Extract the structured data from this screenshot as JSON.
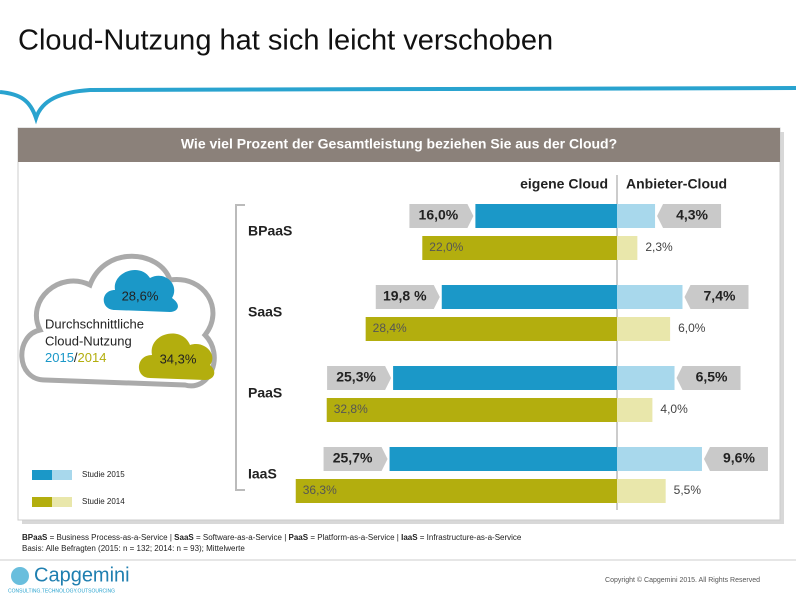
{
  "header": {
    "title": "Cloud-Nutzung hat sich leicht verschoben"
  },
  "chart_data": {
    "type": "diverging_bar",
    "title": "Wie viel Prozent der Gesamtleistung beziehen Sie aus der Cloud?",
    "categories": [
      "BPaaS",
      "SaaS",
      "PaaS",
      "IaaS"
    ],
    "sides": [
      "eigene Cloud",
      "Anbieter-Cloud"
    ],
    "series": [
      {
        "name": "Studie 2015",
        "color_left": "#1b98c8",
        "color_right": "#a8d8ec",
        "eigene": {
          "values": [
            16.0,
            19.8,
            25.3,
            25.7
          ],
          "value_labels": [
            "16,0%",
            "19,8 %",
            "25,3%",
            "25,7%"
          ]
        },
        "anbieter": {
          "values": [
            4.3,
            7.4,
            6.5,
            9.6
          ],
          "value_labels": [
            "4,3%",
            "7,4%",
            "6,5%",
            "9,6%"
          ]
        }
      },
      {
        "name": "Studie 2014",
        "color_left": "#b3ae0e",
        "color_right": "#e9e7ab",
        "eigene": {
          "values": [
            22.0,
            28.4,
            32.8,
            36.3
          ],
          "value_labels": [
            "22,0%",
            "28,4%",
            "32,8%",
            "36,3%"
          ]
        },
        "anbieter": {
          "values": [
            2.3,
            6.0,
            4.0,
            5.5
          ],
          "value_labels": [
            "2,3%",
            "6,0%",
            "4,0%",
            "5,5%"
          ]
        }
      }
    ]
  },
  "summary": {
    "line1": "Durchschnittliche",
    "line2": "Cloud-Nutzung",
    "year_a": "2015",
    "sep": "/",
    "year_b": "2014",
    "value_a": "28,6%",
    "value_b": "34,3%"
  },
  "footnote": {
    "line1": [
      [
        "BPaaS",
        true
      ],
      [
        " = Business Process-as-a-Service | ",
        false
      ],
      [
        "SaaS",
        true
      ],
      [
        " = Software-as-a-Service | ",
        false
      ],
      [
        "PaaS",
        true
      ],
      [
        " = Platform-as-a-Service | ",
        false
      ],
      [
        "IaaS",
        true
      ],
      [
        " = Infrastructure-as-a-Service",
        false
      ]
    ],
    "line2": "Basis:  Alle Befragten (2015: n = 132; 2014: n = 93); Mittelwerte"
  },
  "footer": {
    "logo": "Capgemini",
    "tagline": "CONSULTING.TECHNOLOGY.OUTSOURCING",
    "copyright": "Copyright © Capgemini 2015. All Rights Reserved"
  }
}
